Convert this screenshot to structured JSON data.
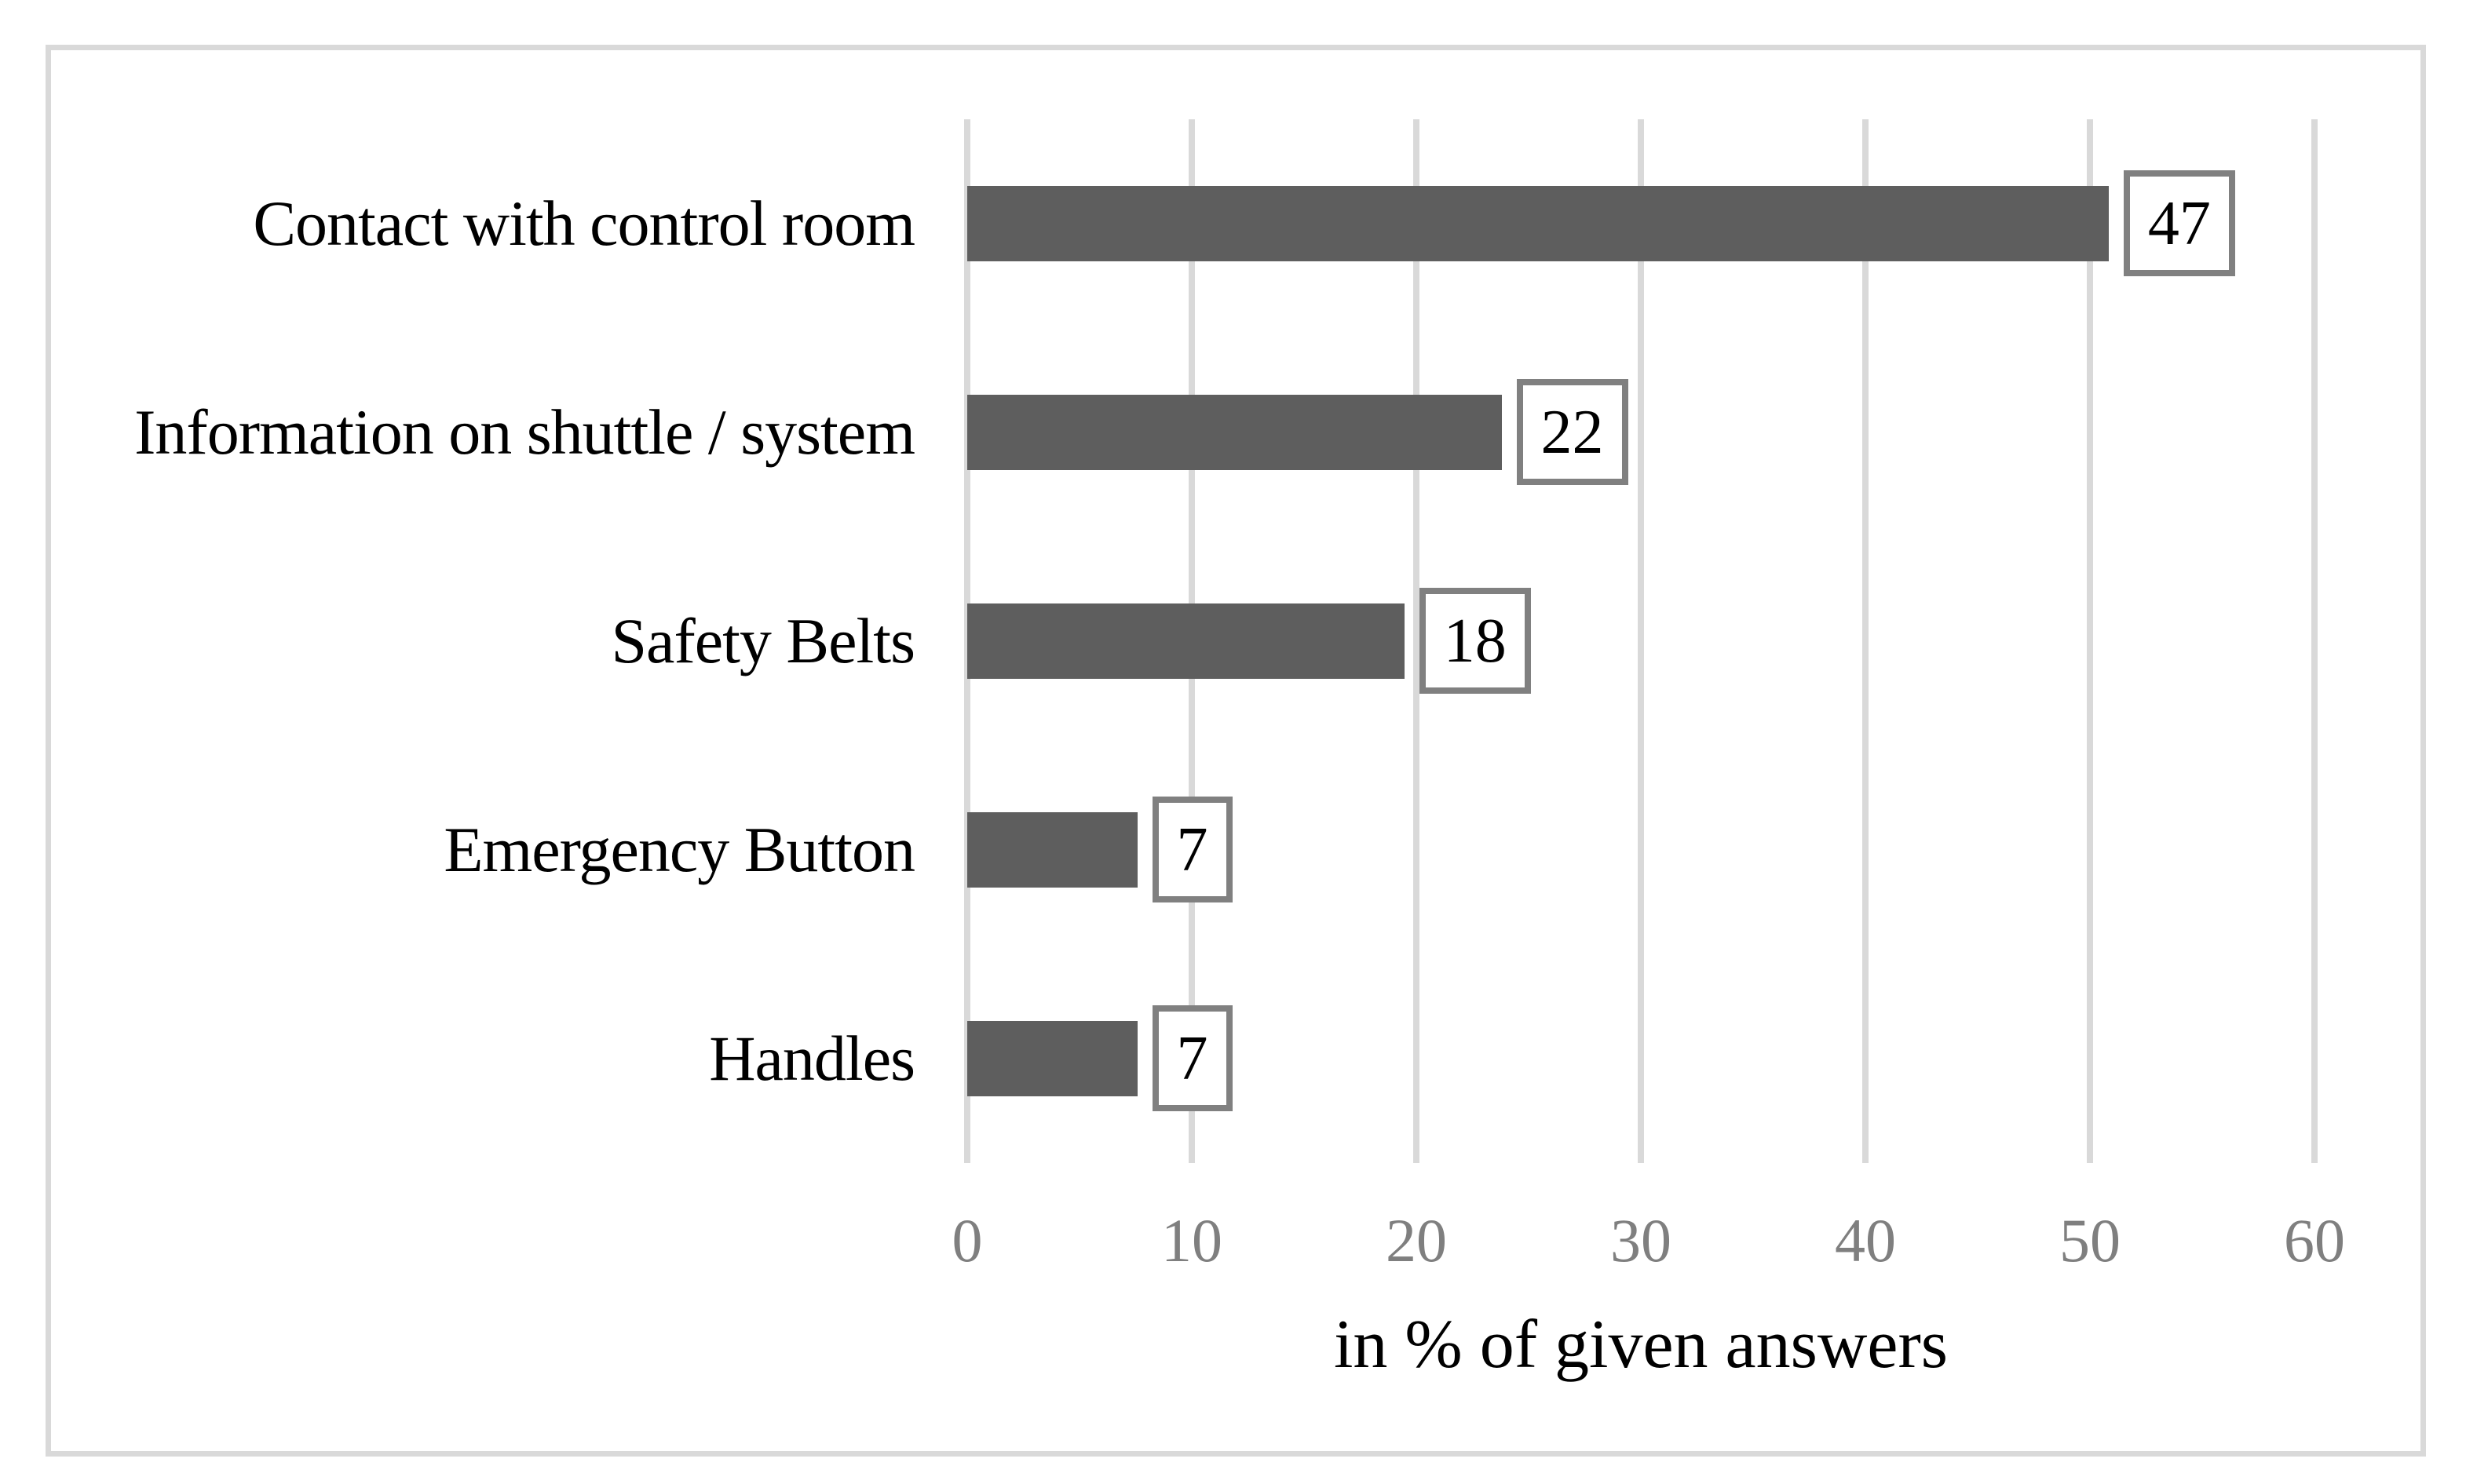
{
  "chart_data": {
    "type": "bar",
    "orientation": "horizontal",
    "categories": [
      "Contact with control room",
      "Information on shuttle / system",
      "Safety Belts",
      "Emergency Button",
      "Handles"
    ],
    "values": [
      47,
      22,
      18,
      7,
      7
    ],
    "xlabel": "in % of given answers",
    "x_ticks": [
      "0",
      "10",
      "20",
      "30",
      "40",
      "50",
      "60"
    ],
    "xlim": [
      0,
      60
    ],
    "grid": "vertical-gridlines-on",
    "legend": "none",
    "bar_color": "#5e5e5e",
    "gridline_color": "#d9d9d9",
    "figure_border_color": "#d9d9d9",
    "value_box_border_color": "#808080",
    "tick_label_color": "#7f7f7f",
    "label_color": "#000000"
  }
}
